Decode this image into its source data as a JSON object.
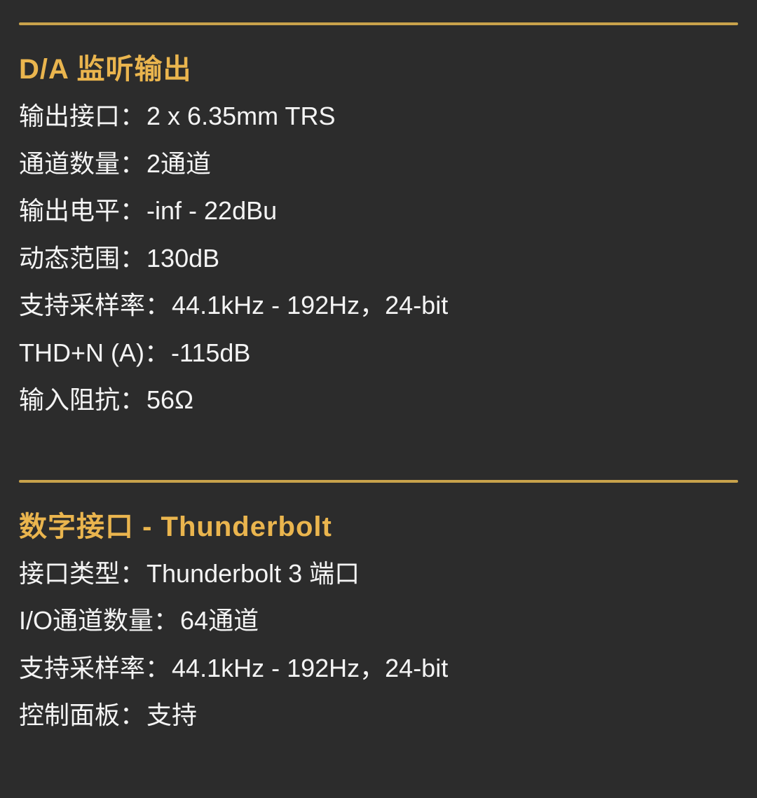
{
  "page": {
    "background_color": "#2c2c2c",
    "divider_color": "#c8a24b",
    "title_color": "#eab54e",
    "text_color": "#f4f4f4",
    "separator": "："
  },
  "sections": [
    {
      "title": "D/A 监听输出",
      "rows": [
        {
          "label": "输出接口",
          "value": "2 x 6.35mm TRS"
        },
        {
          "label": "通道数量",
          "value": "2通道"
        },
        {
          "label": "输出电平",
          "value": "-inf - 22dBu"
        },
        {
          "label": "动态范围",
          "value": "130dB"
        },
        {
          "label": "支持采样率",
          "value": "44.1kHz - 192Hz，24-bit"
        },
        {
          "label": "THD+N (A)",
          "value": "-115dB"
        },
        {
          "label": "输入阻抗",
          "value": "56Ω"
        }
      ]
    },
    {
      "title": "数字接口 - Thunderbolt",
      "rows": [
        {
          "label": "接口类型",
          "value": "Thunderbolt 3 端口"
        },
        {
          "label": "I/O通道数量",
          "value": "64通道"
        },
        {
          "label": "支持采样率",
          "value": "44.1kHz - 192Hz，24-bit"
        },
        {
          "label": "控制面板",
          "value": "支持"
        }
      ]
    }
  ]
}
